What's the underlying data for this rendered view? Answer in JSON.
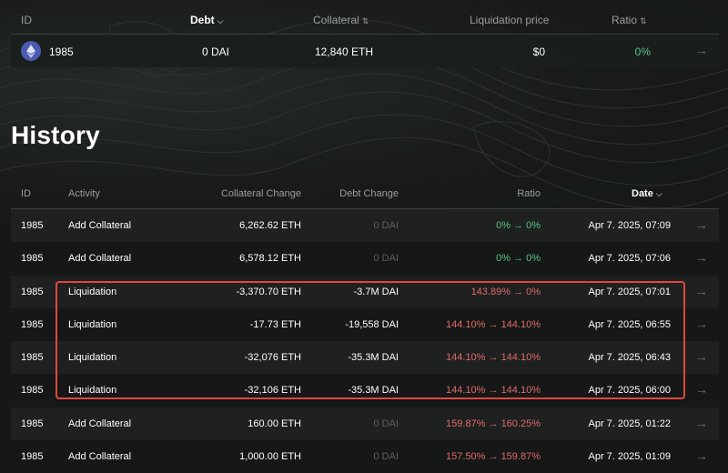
{
  "vault": {
    "headers": {
      "id": "ID",
      "debt": "Debt",
      "collateral": "Collateral",
      "liquidation_price": "Liquidation price",
      "ratio": "Ratio"
    },
    "row": {
      "asset_icon": "eth-icon",
      "id": "1985",
      "debt": "0 DAI",
      "collateral": "12,840 ETH",
      "liquidation_price": "$0",
      "ratio": "0%"
    }
  },
  "history": {
    "title": "History",
    "headers": {
      "id": "ID",
      "activity": "Activity",
      "collateral_change": "Collateral Change",
      "debt_change": "Debt Change",
      "ratio": "Ratio",
      "date": "Date"
    },
    "rows": [
      {
        "id": "1985",
        "activity": "Add Collateral",
        "collateral_change": "6,262.62 ETH",
        "debt_change": "0 DAI",
        "ratio": "0% → 0%",
        "ratio_color": "#56c287",
        "date": "Apr 7. 2025, 07:09"
      },
      {
        "id": "1985",
        "activity": "Add Collateral",
        "collateral_change": "6,578.12 ETH",
        "debt_change": "0 DAI",
        "ratio": "0% → 0%",
        "ratio_color": "#56c287",
        "date": "Apr 7. 2025, 07:06"
      },
      {
        "id": "1985",
        "activity": "Liquidation",
        "collateral_change": "-3,370.70 ETH",
        "debt_change": "-3.7M DAI",
        "ratio": "143.89% → 0%",
        "ratio_color": "#e26a6a",
        "date": "Apr 7. 2025, 07:01"
      },
      {
        "id": "1985",
        "activity": "Liquidation",
        "collateral_change": "-17.73 ETH",
        "debt_change": "-19,558 DAI",
        "ratio": "144.10% → 144.10%",
        "ratio_color": "#e26a6a",
        "date": "Apr 7. 2025, 06:55"
      },
      {
        "id": "1985",
        "activity": "Liquidation",
        "collateral_change": "-32,076 ETH",
        "debt_change": "-35.3M DAI",
        "ratio": "144.10% → 144.10%",
        "ratio_color": "#e26a6a",
        "date": "Apr 7. 2025, 06:43"
      },
      {
        "id": "1985",
        "activity": "Liquidation",
        "collateral_change": "-32,106 ETH",
        "debt_change": "-35.3M DAI",
        "ratio": "144.10% → 144.10%",
        "ratio_color": "#e26a6a",
        "date": "Apr 7. 2025, 06:00"
      },
      {
        "id": "1985",
        "activity": "Add Collateral",
        "collateral_change": "160.00 ETH",
        "debt_change": "0 DAI",
        "ratio": "159.87% → 160.25%",
        "ratio_color": "#e26a6a",
        "date": "Apr 7. 2025, 01:22"
      },
      {
        "id": "1985",
        "activity": "Add Collateral",
        "collateral_change": "1,000.00 ETH",
        "debt_change": "0 DAI",
        "ratio": "157.50% → 159.87%",
        "ratio_color": "#e26a6a",
        "date": "Apr 7. 2025, 01:09"
      }
    ]
  },
  "colors": {
    "background": "#151816",
    "positive": "#56c287",
    "negative": "#e26a6a",
    "highlight_box": "#e0463f"
  },
  "icons": {
    "row_link": "arrow-right-icon",
    "sort_down": "chevron-down-icon",
    "sort_both": "sort-icon"
  }
}
